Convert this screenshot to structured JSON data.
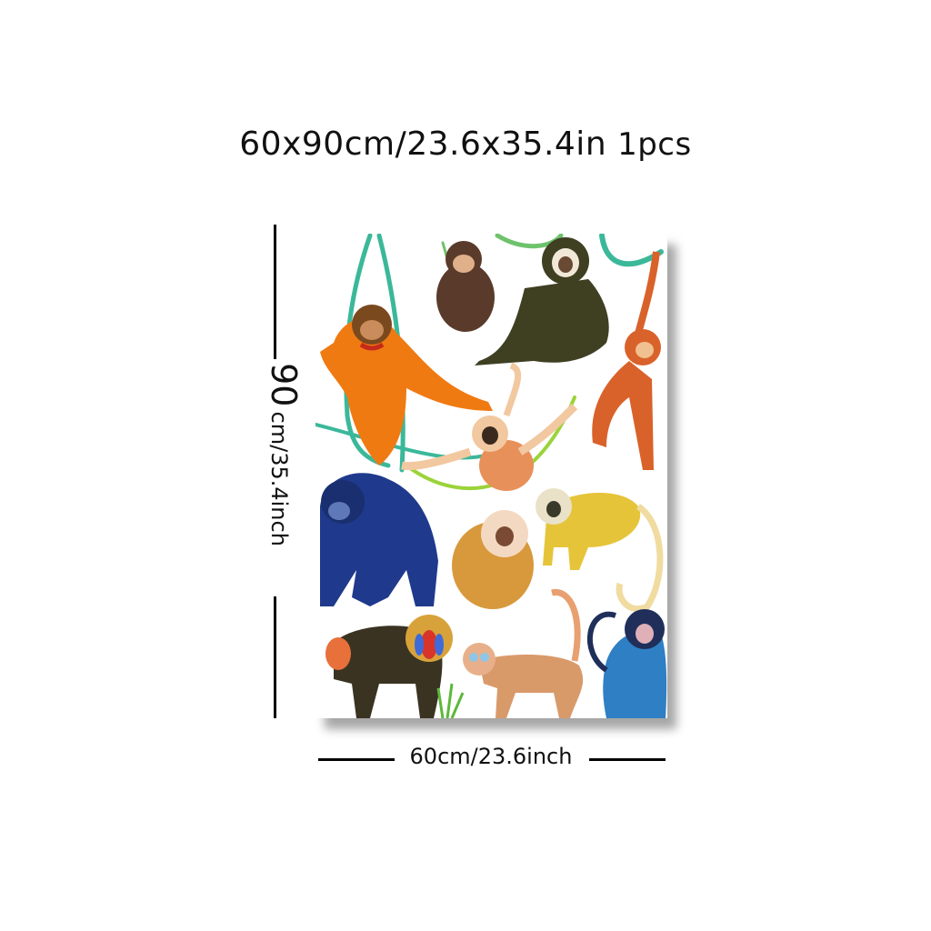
{
  "title": {
    "size_text": "60x90cm/23.6x35.4in",
    "pcs_text": "1pcs"
  },
  "height_label": {
    "number": "90",
    "unit_text": "cm/35.4inch"
  },
  "width_label": "60cm/23.6inch",
  "artwork": {
    "subject": "primates illustration poster",
    "colors": {
      "orangutan": "#f07a12",
      "gorilla": "#1f3a8c",
      "gibbon": "#3f3f22",
      "vine": "#3bb89a",
      "blue-monkey": "#2f7fc4"
    }
  }
}
